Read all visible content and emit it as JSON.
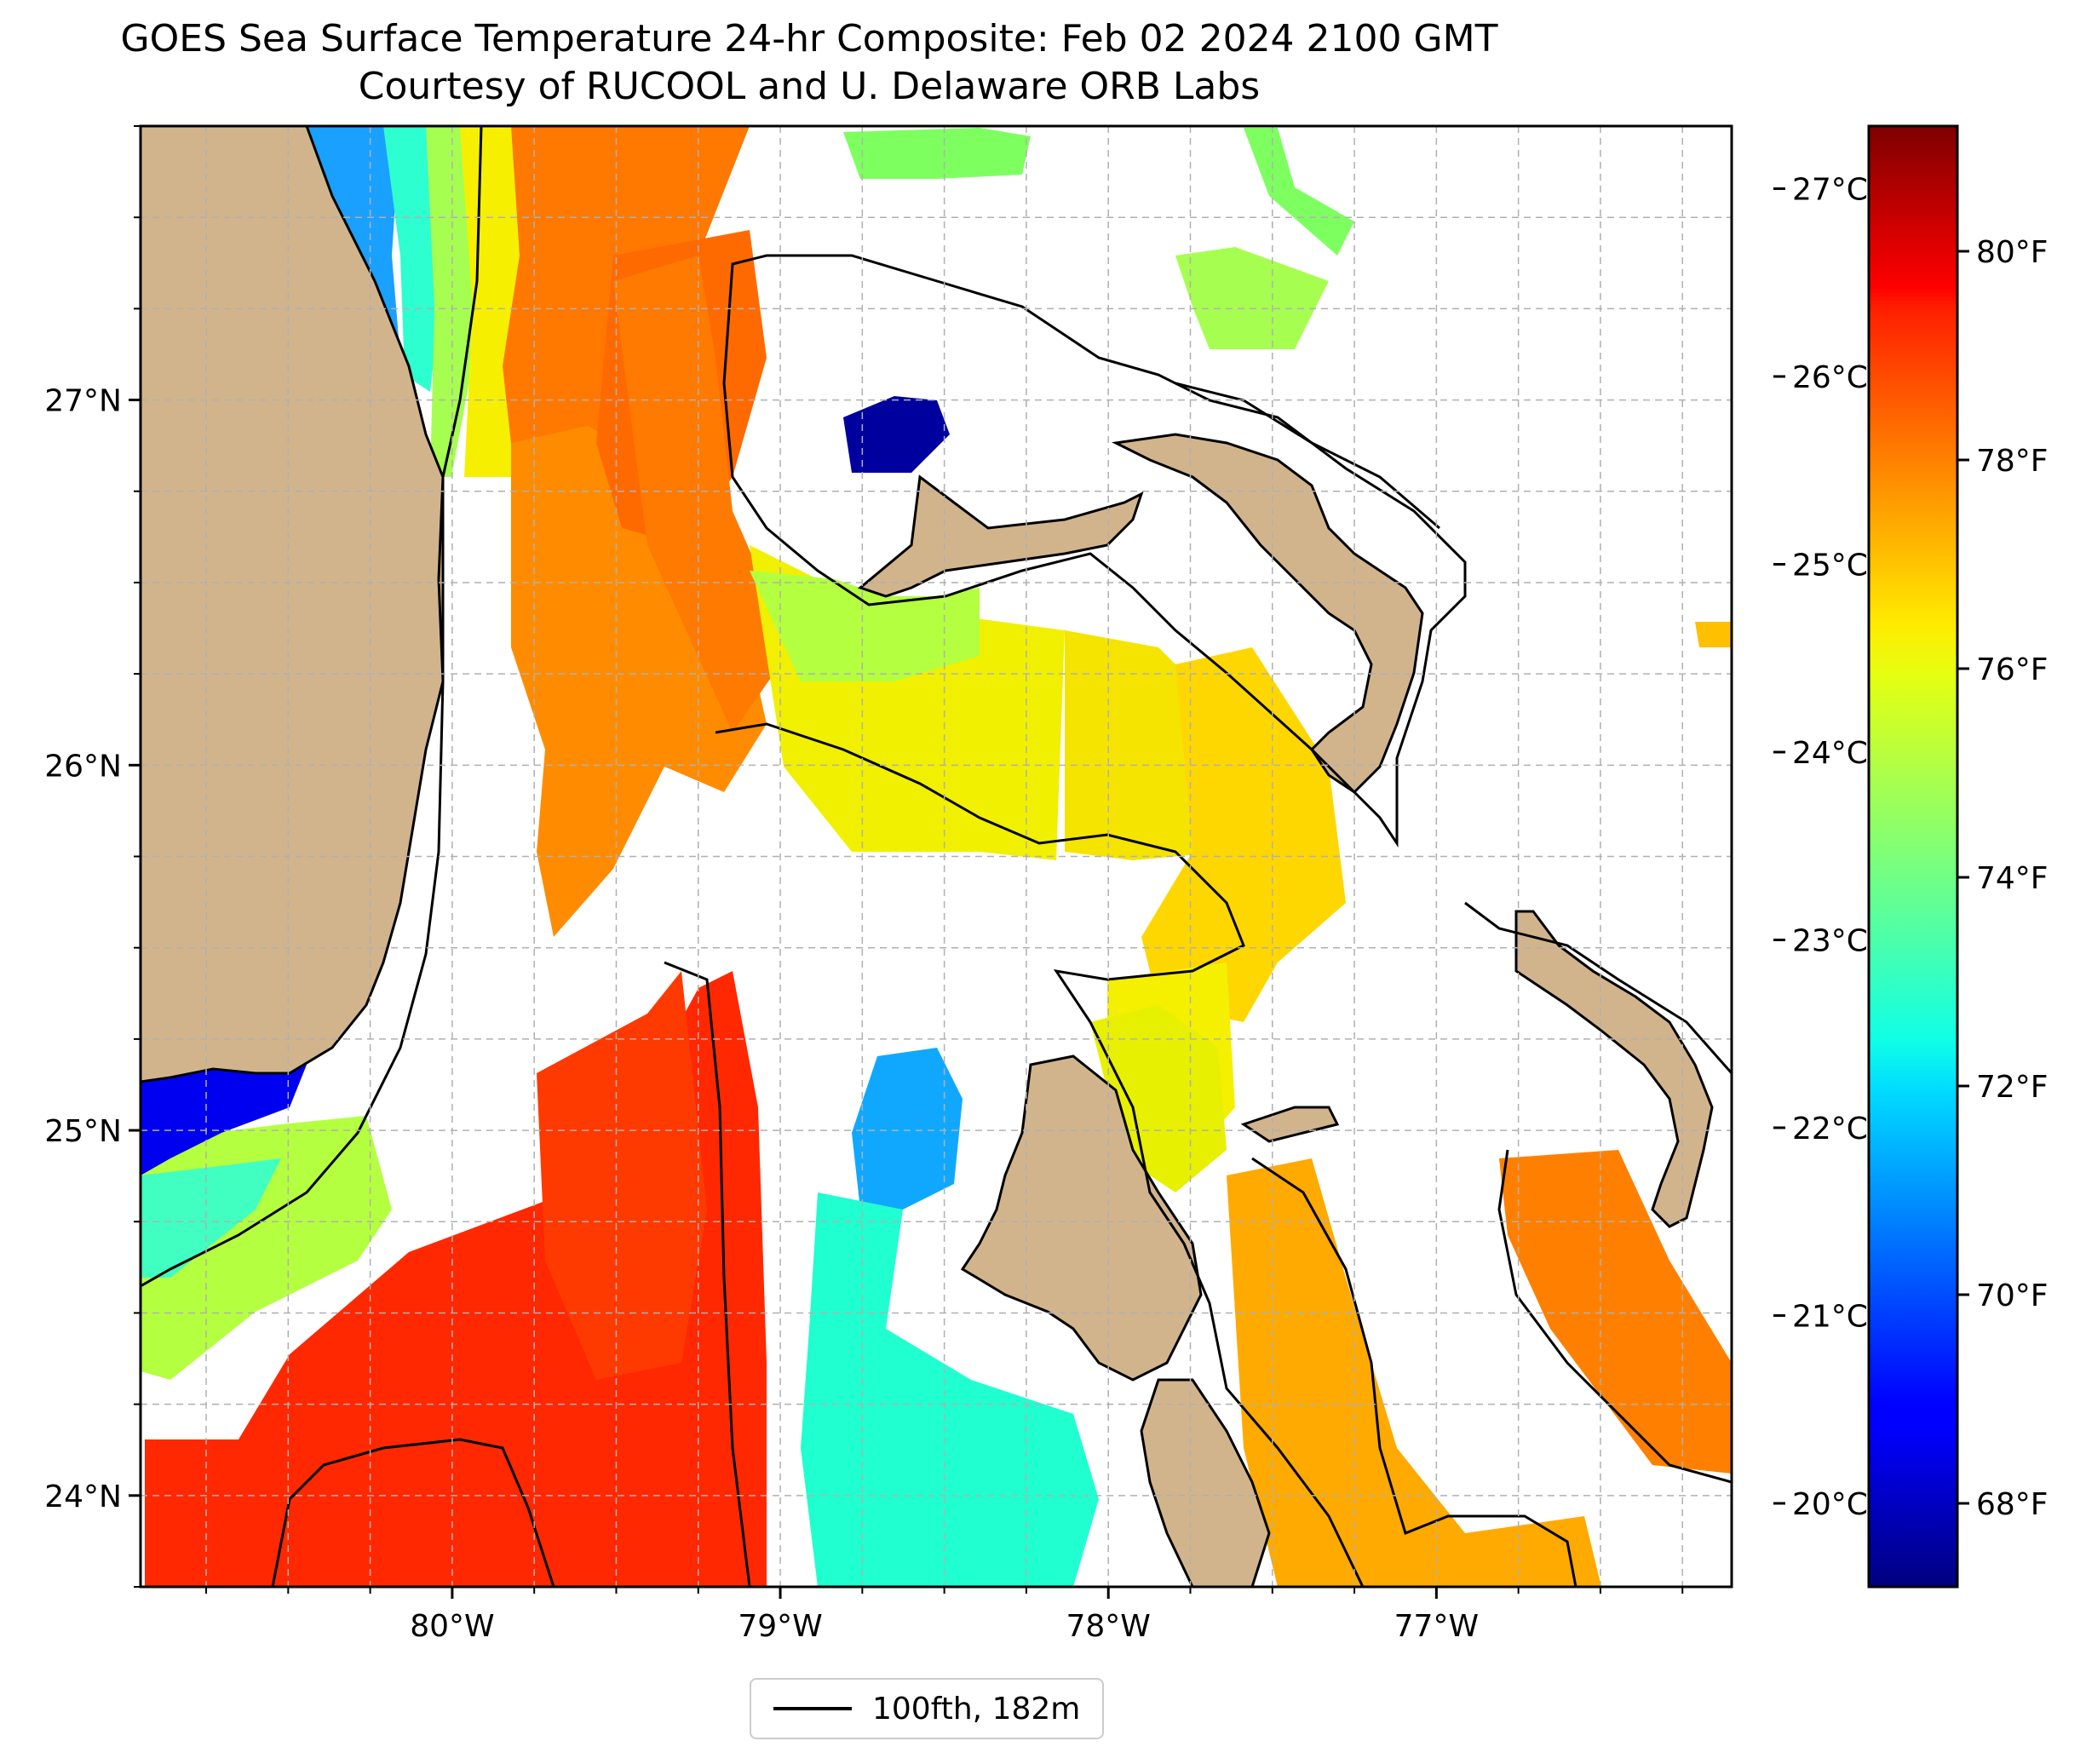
{
  "title": {
    "line1": "GOES Sea Surface Temperature 24-hr Composite: Feb 02 2024 2100 GMT",
    "line2": "Courtesy of RUCOOL and U. Delaware ORB Labs"
  },
  "map": {
    "lat_range": [
      23.75,
      27.75
    ],
    "lon_range": [
      -80.95,
      -76.1
    ],
    "lat_ticks": [
      {
        "value": 27,
        "label": "27°N"
      },
      {
        "value": 26,
        "label": "26°N"
      },
      {
        "value": 25,
        "label": "25°N"
      },
      {
        "value": 24,
        "label": "24°N"
      }
    ],
    "lon_ticks": [
      {
        "value": -80,
        "label": "80°W"
      },
      {
        "value": -79,
        "label": "79°W"
      },
      {
        "value": -78,
        "label": "78°W"
      },
      {
        "value": -77,
        "label": "77°W"
      }
    ],
    "gridlines": "dashed",
    "land_color": "#d2b48c",
    "contour": "100 fathom isobath"
  },
  "colorbar": {
    "colormap": "jet",
    "celsius_ticks": [
      {
        "value": 27,
        "label": "27°C"
      },
      {
        "value": 26,
        "label": "26°C"
      },
      {
        "value": 25,
        "label": "25°C"
      },
      {
        "value": 24,
        "label": "24°C"
      },
      {
        "value": 23,
        "label": "23°C"
      },
      {
        "value": 22,
        "label": "22°C"
      },
      {
        "value": 21,
        "label": "21°C"
      },
      {
        "value": 20,
        "label": "20°C"
      }
    ],
    "fahrenheit_ticks": [
      {
        "value": 80,
        "label": "80°F"
      },
      {
        "value": 78,
        "label": "78°F"
      },
      {
        "value": 76,
        "label": "76°F"
      },
      {
        "value": 74,
        "label": "74°F"
      },
      {
        "value": 72,
        "label": "72°F"
      },
      {
        "value": 70,
        "label": "70°F"
      },
      {
        "value": 68,
        "label": "68°F"
      }
    ],
    "range_f": [
      67.2,
      81.2
    ]
  },
  "legend": {
    "label": "100fth, 182m"
  }
}
